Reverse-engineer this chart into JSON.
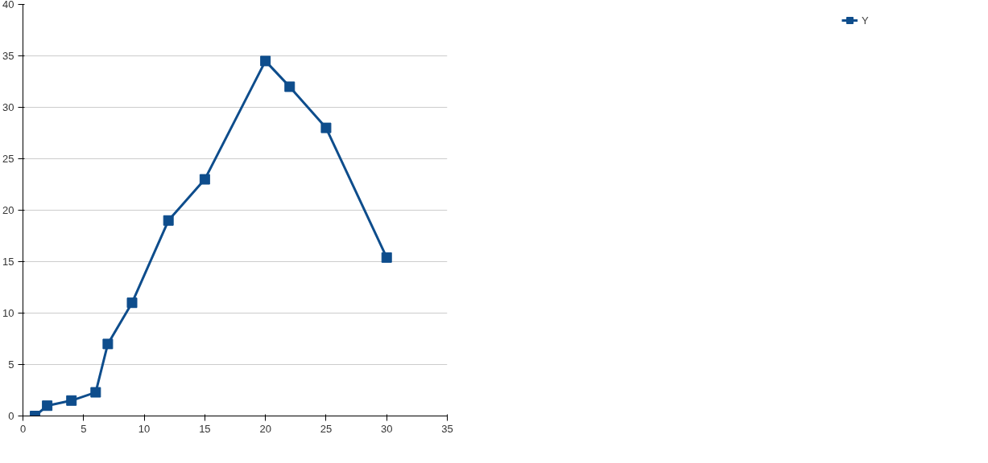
{
  "chart_data": {
    "type": "line",
    "x": [
      1,
      2,
      4,
      6,
      7,
      9,
      12,
      15,
      20,
      22,
      25,
      30
    ],
    "series": [
      {
        "name": "Y",
        "color": "#0e4d8c",
        "values": [
          0,
          1,
          1.5,
          2.3,
          7,
          11,
          19,
          23,
          34.5,
          32,
          28,
          15.4
        ]
      }
    ],
    "xlim": [
      0,
      35
    ],
    "xticks": [
      0,
      5,
      10,
      15,
      20,
      25,
      30,
      35
    ],
    "ylim": [
      0,
      40
    ],
    "yticks": [
      0,
      5,
      10,
      15,
      20,
      25,
      30,
      35,
      40
    ],
    "grid": "y",
    "legend": "right",
    "marker": "square",
    "line_style": "solid"
  }
}
